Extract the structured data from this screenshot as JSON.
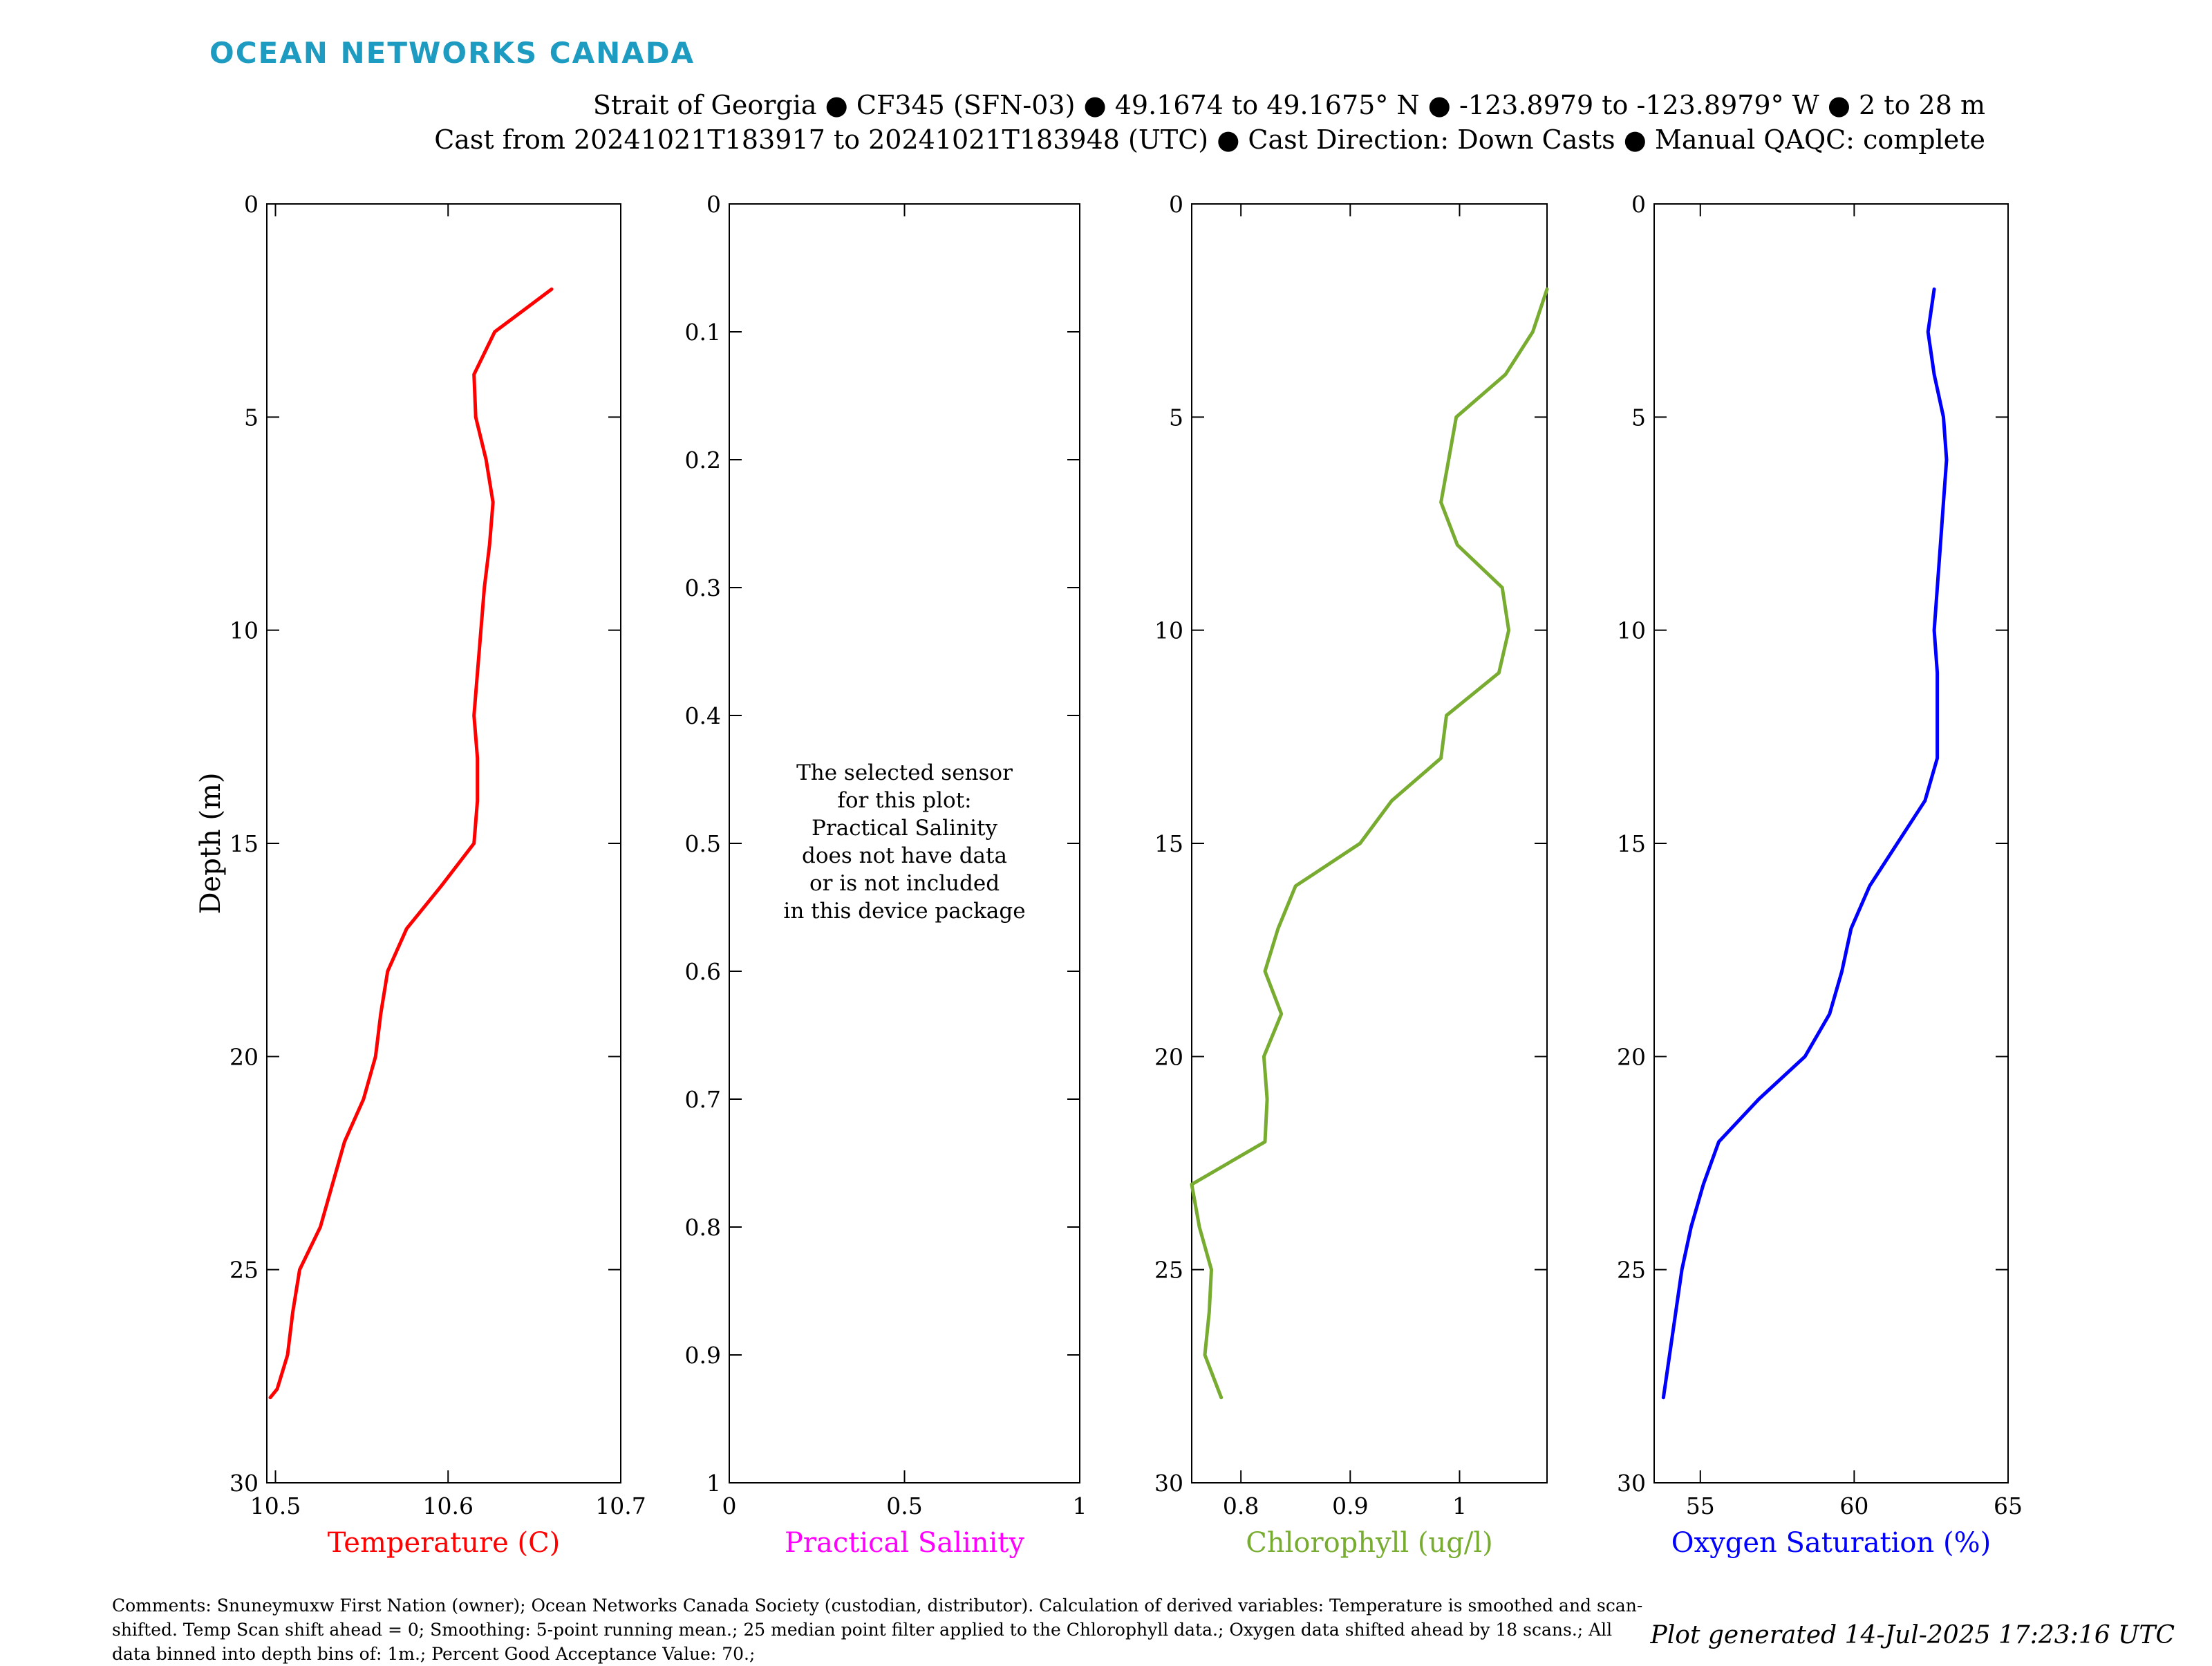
{
  "brand": {
    "name": "OCEAN NETWORKS CANADA",
    "color": "#1e9bc1"
  },
  "header": {
    "line1": "Strait of Georgia ● CF345 (SFN-03) ● 49.1674 to 49.1675° N ● -123.8979 to -123.8979° W ● 2 to 28 m",
    "line2": "Cast from 20241021T183917 to 20241021T183948 (UTC) ● Cast Direction: Down Casts ● Manual QAQC: complete"
  },
  "chart_data": [
    {
      "type": "line",
      "xlabel": "Temperature (C)",
      "ylabel": "Depth (m)",
      "color": "#ff0000",
      "xlim": [
        10.495,
        10.7
      ],
      "ylim": [
        0,
        30
      ],
      "y_inverted": true,
      "xticks": [
        10.5,
        10.6,
        10.7
      ],
      "xtick_labels": [
        "10.5",
        "10.6",
        "10.7"
      ],
      "yticks": [
        0,
        5,
        10,
        15,
        20,
        25,
        30
      ],
      "ytick_labels": [
        "0",
        "5",
        "10",
        "15",
        "20",
        "25",
        "30"
      ],
      "series": [
        {
          "x": [
            10.66,
            10.627,
            10.615,
            10.616,
            10.622,
            10.626,
            10.624,
            10.621,
            10.619,
            10.617,
            10.615,
            10.617,
            10.617,
            10.615,
            10.596,
            10.576,
            10.565,
            10.561,
            10.558,
            10.551,
            10.54,
            10.533,
            10.526,
            10.514,
            10.51,
            10.507,
            10.501,
            10.497,
            10.497
          ],
          "y": [
            2,
            3,
            4,
            5,
            6,
            7,
            8,
            9,
            10,
            11,
            12,
            13,
            14,
            15,
            16,
            17,
            18,
            19,
            20,
            21,
            22,
            23,
            24,
            25,
            26,
            27,
            27.8,
            28,
            28
          ]
        }
      ]
    },
    {
      "type": "line",
      "xlabel": "Practical Salinity",
      "color": "#ff00ff",
      "xlim": [
        0,
        1
      ],
      "ylim": [
        0,
        1
      ],
      "y_inverted": true,
      "xticks": [
        0,
        0.5,
        1
      ],
      "xtick_labels": [
        "0",
        "0.5",
        "1"
      ],
      "yticks": [
        0,
        0.1,
        0.2,
        0.3,
        0.4,
        0.5,
        0.6,
        0.7,
        0.8,
        0.9,
        1
      ],
      "ytick_labels": [
        "0",
        "0.1",
        "0.2",
        "0.3",
        "0.4",
        "0.5",
        "0.6",
        "0.7",
        "0.8",
        "0.9",
        "1"
      ],
      "series": [],
      "message": [
        "The selected sensor",
        "for this plot:",
        "Practical Salinity",
        "does not have data",
        "or is not included",
        "in this device package"
      ]
    },
    {
      "type": "line",
      "xlabel": "Chlorophyll (ug/l)",
      "color": "#77ac30",
      "xlim": [
        0.755,
        1.08
      ],
      "ylim": [
        0,
        30
      ],
      "y_inverted": true,
      "xticks": [
        0.8,
        0.9,
        1
      ],
      "xtick_labels": [
        "0.8",
        "0.9",
        "1"
      ],
      "yticks": [
        0,
        5,
        10,
        15,
        20,
        25,
        30
      ],
      "ytick_labels": [
        "0",
        "5",
        "10",
        "15",
        "20",
        "25",
        "30"
      ],
      "series": [
        {
          "x": [
            1.08,
            1.067,
            1.042,
            0.997,
            0.99,
            0.983,
            0.998,
            1.039,
            1.045,
            1.036,
            0.988,
            0.983,
            0.938,
            0.909,
            0.85,
            0.834,
            0.822,
            0.837,
            0.821,
            0.824,
            0.822,
            0.755,
            0.762,
            0.773,
            0.771,
            0.767,
            0.782
          ],
          "y": [
            2,
            3,
            4,
            5,
            6,
            7,
            8,
            9,
            10,
            11,
            12,
            13,
            14,
            15,
            16,
            17,
            18,
            19,
            20,
            21,
            22,
            23,
            24,
            25,
            26,
            27,
            28
          ]
        }
      ]
    },
    {
      "type": "line",
      "xlabel": "Oxygen Saturation (%)",
      "color": "#0000ff",
      "xlim": [
        53.5,
        65
      ],
      "ylim": [
        0,
        30
      ],
      "y_inverted": true,
      "xticks": [
        55,
        60,
        65
      ],
      "xtick_labels": [
        "55",
        "60",
        "65"
      ],
      "yticks": [
        0,
        5,
        10,
        15,
        20,
        25,
        30
      ],
      "ytick_labels": [
        "0",
        "5",
        "10",
        "15",
        "20",
        "25",
        "30"
      ],
      "series": [
        {
          "x": [
            62.6,
            62.4,
            62.6,
            62.9,
            63.0,
            62.9,
            62.8,
            62.7,
            62.6,
            62.7,
            62.7,
            62.7,
            62.3,
            61.4,
            60.5,
            59.9,
            59.6,
            59.2,
            58.4,
            56.9,
            55.6,
            55.1,
            54.7,
            54.4,
            54.2,
            54.0,
            53.8
          ],
          "y": [
            2,
            3,
            4,
            5,
            6,
            7,
            8,
            9,
            10,
            11,
            12,
            13,
            14,
            15,
            16,
            17,
            18,
            19,
            20,
            21,
            22,
            23,
            24,
            25,
            26,
            27,
            28
          ]
        }
      ]
    }
  ],
  "comments": "Comments: Snuneymuxw First Nation (owner); Ocean Networks Canada Society (custodian, distributor). Calculation of derived variables: Temperature is smoothed and scan-shifted. Temp Scan shift ahead = 0; Smoothing: 5-point running mean.; 25 median point filter applied to the Chlorophyll data.; Oxygen data shifted ahead by 18 scans.; All data binned into depth bins of: 1m.; Percent Good Acceptance Value: 70.;",
  "generated": "Plot generated 14-Jul-2025 17:23:16 UTC"
}
